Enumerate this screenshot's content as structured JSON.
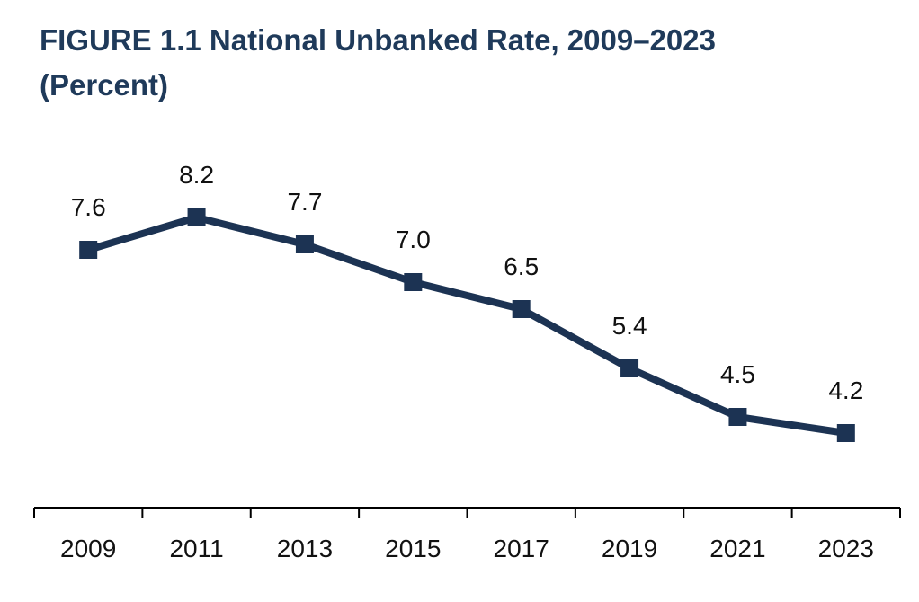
{
  "title": {
    "line1": "FIGURE 1.1 National Unbanked Rate, 2009–2023",
    "line2": "(Percent)"
  },
  "colors": {
    "title": "#1f3a5a",
    "series": "#1c3353",
    "axis": "#000000",
    "text": "#111111"
  },
  "chart_data": {
    "type": "line",
    "title": "FIGURE 1.1 National Unbanked Rate, 2009–2023 (Percent)",
    "xlabel": "",
    "ylabel": "",
    "categories": [
      "2009",
      "2011",
      "2013",
      "2015",
      "2017",
      "2019",
      "2021",
      "2023"
    ],
    "values": [
      7.6,
      8.2,
      7.7,
      7.0,
      6.5,
      5.4,
      4.5,
      4.2
    ],
    "value_labels": [
      "7.6",
      "8.2",
      "7.7",
      "7.0",
      "6.5",
      "5.4",
      "4.5",
      "4.2"
    ],
    "marker": "square",
    "y_axis_visible": false,
    "grid": false,
    "legend": "none"
  }
}
